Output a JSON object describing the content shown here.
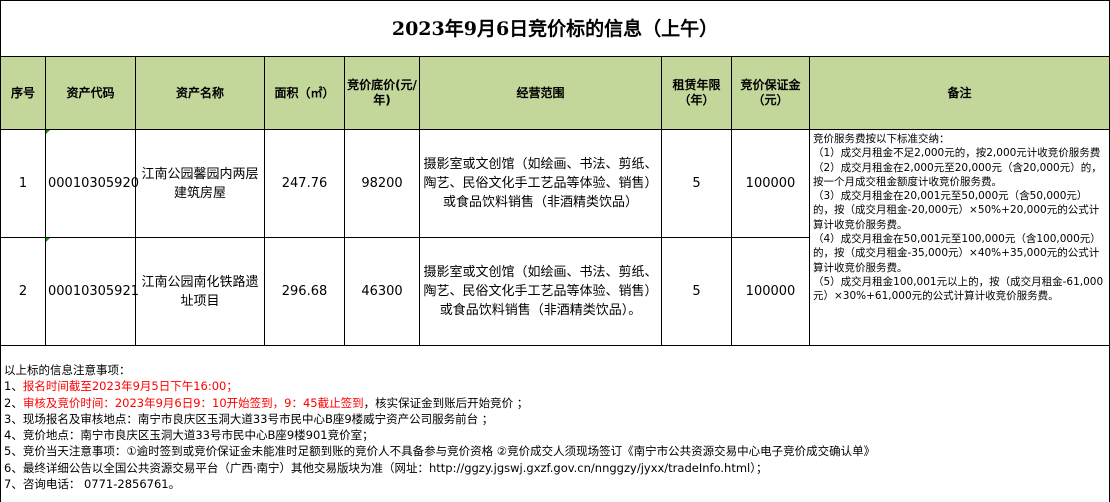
{
  "title": "2023年9月6日竞价标的信息（上午）",
  "headers": [
    "序号",
    "资产代码",
    "资产名称",
    "面积（㎡）",
    "竞价底价(元/年)",
    "经营范围",
    "租赁年限（年）",
    "竞价保证金（元）",
    "备注"
  ],
  "rows": [
    {
      "no": "1",
      "code": "00010305920",
      "name": "江南公园馨园内两层建筑房屋",
      "area": "247.76",
      "price": "98200",
      "scope": "摄影室或文创馆（如绘画、书法、剪纸、陶艺、民俗文化手工艺品等体验、销售）或食品饮料销售（非酒精类饮品）",
      "years": "5",
      "deposit": "100000"
    },
    {
      "no": "2",
      "code": "00010305921",
      "name": "江南公园南化铁路遗址项目",
      "area": "296.68",
      "price": "46300",
      "scope": "摄影室或文创馆（如绘画、书法、剪纸、陶艺、民俗文化手工艺品等体验、销售）或食品饮料销售（非酒精类饮品）。",
      "years": "5",
      "deposit": "100000"
    }
  ],
  "remarks": [
    "竞价服务费按以下标准交纳：",
    "（1）成交月租金不足2,000元的，按2,000元计收竞价服务费",
    "（2）成交月租金在2,000元至20,000元（含20,000元）的，按一个月成交租金额度计收竞价服务费。",
    "（3）成交月租金在20,001元至50,000元（含50,000元）的，按（成交月租金-20,000元）×50%+20,000元的公式计算计收竞价服务费。",
    "（4）成交月租金在50,001元至100,000元（含100,000元）的，按（成交月租金-35,000元）×40%+35,000元的公式计算计收竞价服务费。",
    "（5）成交月租金100,001元以上的，按（成交月租金-61,000元）×30%+61,000元的公式计算计收竞价服务费。"
  ],
  "notes": {
    "heading": "以上标的信息注意事项：",
    "n1_prefix": "1、",
    "n1": "报名时间截至2023年9月5日下午16:00；",
    "n2_prefix": "2、",
    "n2_red": "审核及竞价时间：2023年9月6日9：10开始签到，9：45截止签到",
    "n2_rest": "，核实保证金到账后开始竞价 ；",
    "n3": "3、现场报名及审核地点：南宁市良庆区玉洞大道33号市民中心B座9楼威宁资产公司服务前台 ；",
    "n4": "4、竞价地点：南宁市良庆区玉洞大道33号市民中心B座9楼901竞价室；",
    "n5": "5、竞价当天注意事项：①逾时签到或竞价保证金未能准时足额到账的竞价人不具备参与竞价资格 ②竞价成交人须现场签订《南宁市公共资源交易中心电子竞价成交确认单》",
    "n6": "6、最终详细公告以全国公共资源交易平台（广西·南宁）其他交易版块为准（网址：http://ggzy.jgswj.gxzf.gov.cn/nnggzy/jyxx/tradeInfo.html）；",
    "n7": "7、咨询电话： 0771-2856761。"
  },
  "colors": {
    "header_bg": "#c4d79b",
    "highlight": "#ff0000"
  }
}
